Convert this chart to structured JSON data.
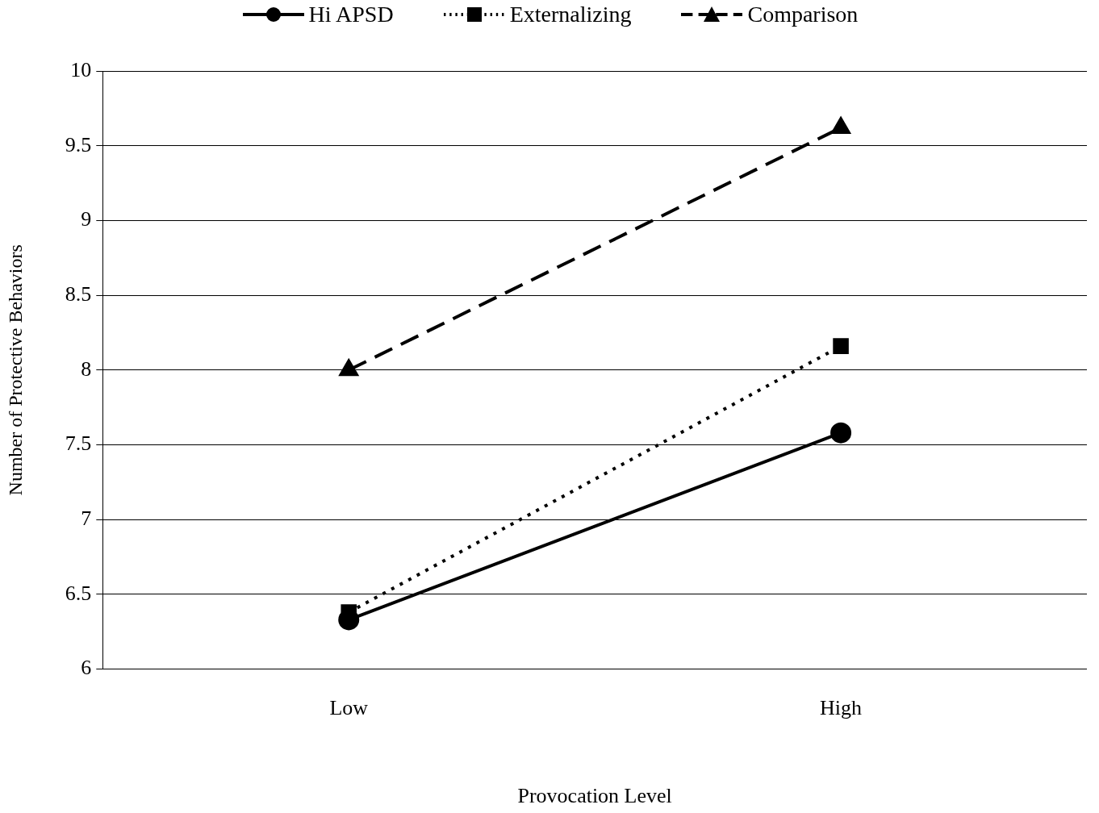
{
  "chart_data": {
    "type": "line",
    "xlabel": "Provocation Level",
    "ylabel": "Number of Protective Behaviors",
    "categories": [
      "Low",
      "High"
    ],
    "series": [
      {
        "name": "Hi APSD",
        "color": "#000000",
        "values": [
          6.33,
          7.58
        ],
        "marker": "circle",
        "line_style": "solid"
      },
      {
        "name": "Externalizing",
        "color": "#000000",
        "values": [
          6.38,
          8.16
        ],
        "marker": "square",
        "line_style": "dotted"
      },
      {
        "name": "Comparison",
        "color": "#000000",
        "values": [
          8.0,
          9.62
        ],
        "marker": "triangle",
        "line_style": "dashed"
      }
    ],
    "ylim": [
      6,
      10
    ],
    "yticks": [
      6,
      6.5,
      7,
      7.5,
      8,
      8.5,
      9,
      9.5,
      10
    ],
    "grid": "y",
    "legend": "top"
  }
}
